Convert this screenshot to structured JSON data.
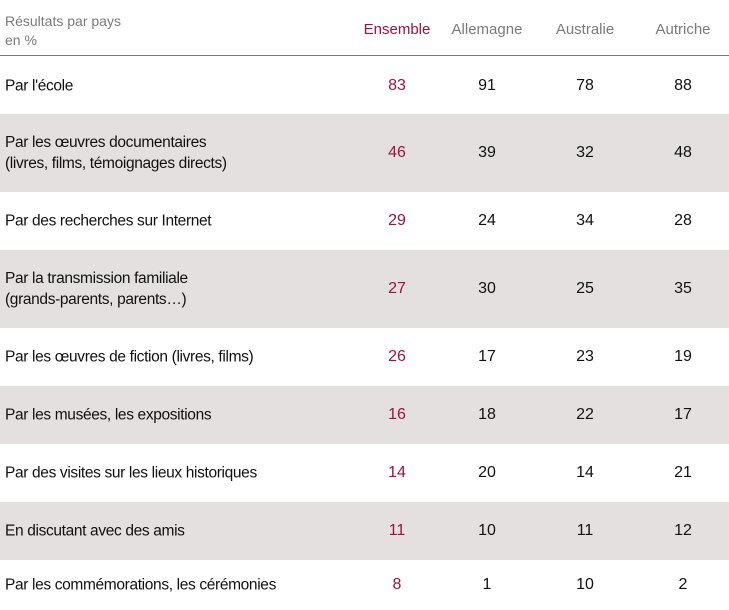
{
  "header": {
    "title_line1": "Résultats par pays",
    "title_line2": "en %"
  },
  "colors": {
    "accent": "#a0123e",
    "header_text": "#7a7a7a",
    "row_shade": "#e3e0df"
  },
  "chart_data": {
    "type": "table",
    "title": "Résultats par pays en %",
    "columns": [
      "Ensemble",
      "Allemagne",
      "Australie",
      "Autriche"
    ],
    "rows": [
      {
        "label": [
          "Par l'école"
        ],
        "values": [
          "83",
          "91",
          "78",
          "88"
        ]
      },
      {
        "label": [
          "Par les œuvres documentaires",
          "(livres, films, témoignages directs)"
        ],
        "values": [
          "46",
          "39",
          "32",
          "48"
        ]
      },
      {
        "label": [
          "Par des recherches sur Internet"
        ],
        "values": [
          "29",
          "24",
          "34",
          "28"
        ]
      },
      {
        "label": [
          "Par la transmission familiale",
          "(grands-parents, parents…)"
        ],
        "values": [
          "27",
          "30",
          "25",
          "35"
        ]
      },
      {
        "label": [
          "Par les œuvres de fiction (livres, films)"
        ],
        "values": [
          "26",
          "17",
          "23",
          "19"
        ]
      },
      {
        "label": [
          "Par les musées, les expositions"
        ],
        "values": [
          "16",
          "18",
          "22",
          "17"
        ]
      },
      {
        "label": [
          "Par des visites sur les lieux historiques"
        ],
        "values": [
          "14",
          "20",
          "14",
          "21"
        ]
      },
      {
        "label": [
          "En discutant avec des amis"
        ],
        "values": [
          "11",
          "10",
          "11",
          "12"
        ]
      },
      {
        "label": [
          "Par les commémorations, les cérémonies"
        ],
        "values": [
          "8",
          "1",
          "10",
          "2"
        ]
      }
    ]
  }
}
